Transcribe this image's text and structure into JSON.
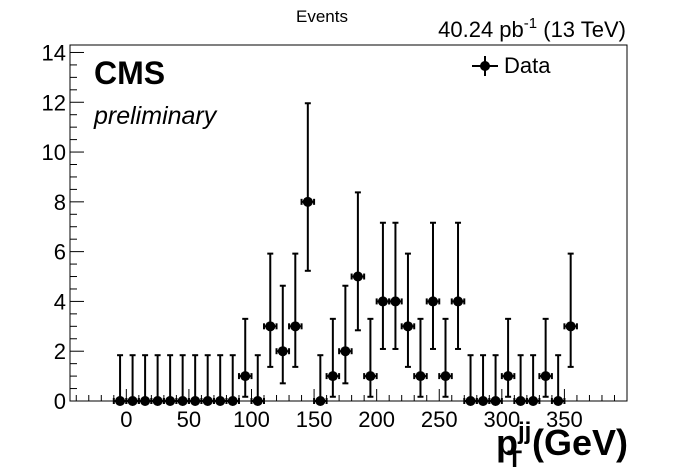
{
  "chart_data": {
    "type": "scatter",
    "experiment": "CMS",
    "status": "preliminary",
    "lumi": {
      "value": "40.24 pb",
      "superscript": "-1",
      "energy": "(13 TeV)"
    },
    "xlabel": {
      "main": "p",
      "sup": "jj",
      "sub": "T",
      "unit": "(GeV)"
    },
    "ylabel": "Events",
    "xlim": [
      -45,
      400
    ],
    "ylim": [
      0,
      14.3
    ],
    "xticks": [
      0,
      50,
      100,
      150,
      200,
      250,
      300,
      350
    ],
    "yticks": [
      0,
      2,
      4,
      6,
      8,
      10,
      12,
      14
    ],
    "grid": false,
    "legend_position": "top-right",
    "series": [
      {
        "name": "Data",
        "marker": "circle",
        "color": "#000000",
        "bin_width": 10,
        "x": [
          -5,
          5,
          15,
          25,
          35,
          45,
          55,
          65,
          75,
          85,
          95,
          105,
          115,
          125,
          135,
          145,
          155,
          165,
          175,
          185,
          195,
          205,
          215,
          225,
          235,
          245,
          255,
          265,
          275,
          285,
          295,
          305,
          315,
          325,
          335,
          345,
          355
        ],
        "y": [
          0,
          0,
          0,
          0,
          0,
          0,
          0,
          0,
          0,
          0,
          1,
          0,
          3,
          2,
          3,
          8,
          0,
          1,
          2,
          5,
          1,
          4,
          4,
          3,
          1,
          4,
          1,
          4,
          0,
          0,
          0,
          1,
          0,
          0,
          1,
          0,
          3
        ],
        "err_up": [
          1.84,
          1.84,
          1.84,
          1.84,
          1.84,
          1.84,
          1.84,
          1.84,
          1.84,
          1.84,
          2.3,
          1.84,
          2.92,
          2.63,
          2.92,
          3.96,
          1.84,
          2.3,
          2.63,
          3.38,
          2.3,
          3.16,
          3.16,
          2.92,
          2.3,
          3.16,
          2.3,
          3.16,
          1.84,
          1.84,
          1.84,
          2.3,
          1.84,
          1.84,
          2.3,
          1.84,
          2.92
        ],
        "err_down": [
          0,
          0,
          0,
          0,
          0,
          0,
          0,
          0,
          0,
          0,
          0.83,
          0,
          1.63,
          1.29,
          1.63,
          2.77,
          0,
          0.83,
          1.29,
          2.16,
          0.83,
          1.91,
          1.91,
          1.63,
          0.83,
          1.91,
          0.83,
          1.91,
          0,
          0,
          0,
          0.83,
          0,
          0,
          0.83,
          0,
          1.63
        ]
      }
    ]
  }
}
